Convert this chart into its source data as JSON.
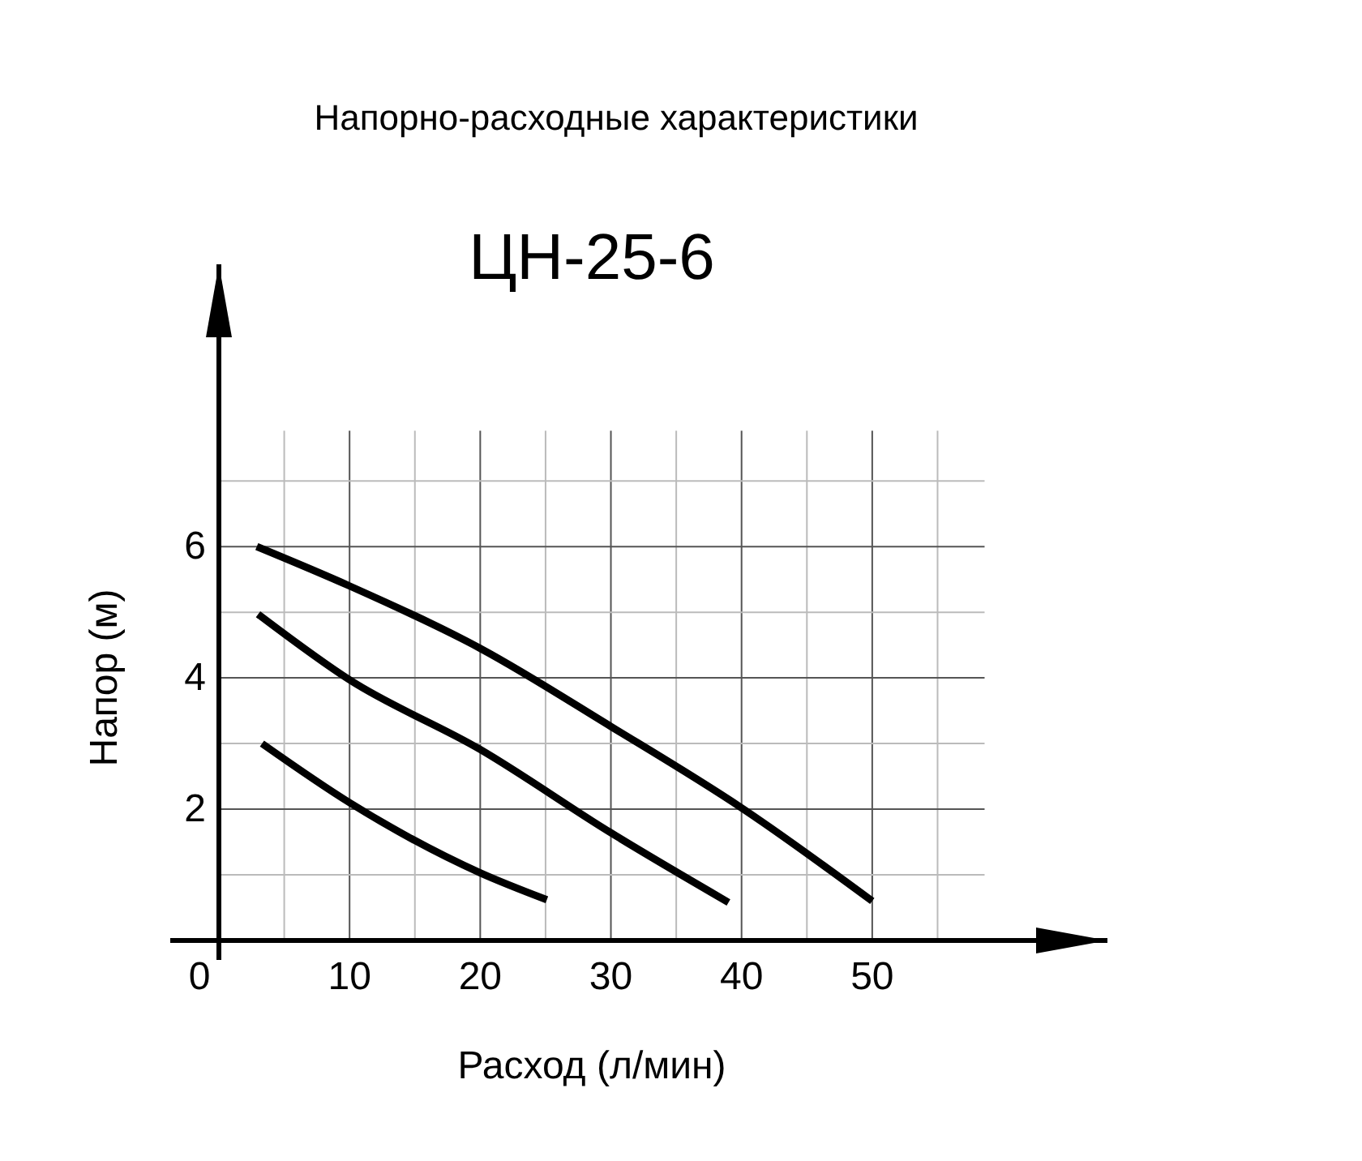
{
  "chart_data": {
    "type": "line",
    "title": "Напорно-расходные характеристики",
    "subtitle": "ЦН-25-6",
    "xlabel": "Расход (л/мин)",
    "ylabel": "Напор (м)",
    "xlim": [
      0,
      68
    ],
    "ylim": [
      0,
      10.3
    ],
    "xticks": [
      0,
      {
        "value": 5,
        "label": null
      },
      10,
      {
        "value": 15,
        "label": null
      },
      20,
      {
        "value": 25,
        "label": null
      },
      30,
      {
        "value": 35,
        "label": null
      },
      40,
      {
        "value": 45,
        "label": null
      },
      50,
      {
        "value": 55,
        "label": null
      }
    ],
    "yticks": [
      {
        "value": 1,
        "label": null
      },
      2,
      {
        "value": 3,
        "label": null
      },
      4,
      {
        "value": 5,
        "label": null
      },
      6,
      {
        "value": 7,
        "label": null
      }
    ],
    "grid": true,
    "marker": "none",
    "line_style": "solid",
    "series": [
      {
        "color": "#000000",
        "x": [
          2.9,
          10,
          20,
          30,
          40,
          50
        ],
        "values": [
          6.0,
          5.4,
          4.45,
          3.26,
          2.02,
          0.6
        ]
      },
      {
        "color": "#000000",
        "x": [
          3.0,
          10,
          20,
          30,
          39
        ],
        "values": [
          4.97,
          3.97,
          2.91,
          1.64,
          0.58
        ]
      },
      {
        "color": "#000000",
        "x": [
          3.3,
          10,
          20,
          25.1
        ],
        "values": [
          3.0,
          2.1,
          1.03,
          0.62
        ]
      }
    ]
  }
}
